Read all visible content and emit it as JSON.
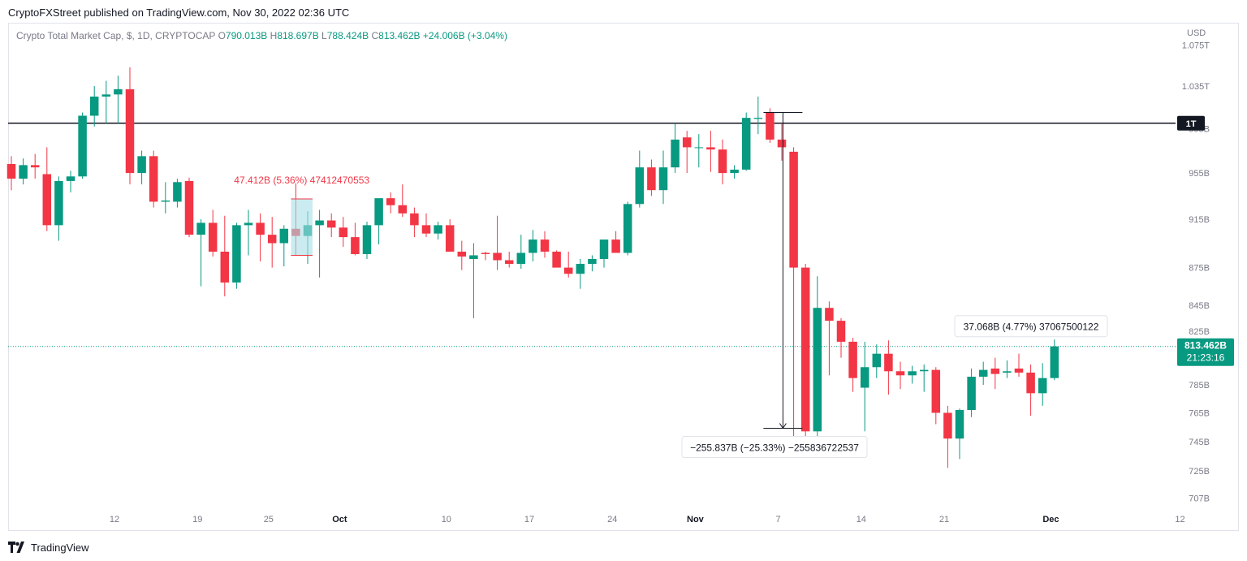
{
  "header": {
    "published": "CryptoFXStreet published on TradingView.com, Nov 30, 2022 02:36 UTC"
  },
  "legend": {
    "title": "Crypto Total Market Cap, $, 1D, CRYPTOCAP",
    "o_label": "O",
    "o_value": "790.013B",
    "h_label": "H",
    "h_value": "818.697B",
    "l_label": "L",
    "l_value": "788.424B",
    "c_label": "C",
    "c_value": "813.462B",
    "change": "+24.006B (+3.04%)"
  },
  "footer": {
    "brand": "TradingView"
  },
  "colors": {
    "up": "#089981",
    "down": "#f23645",
    "line": "#131722",
    "axis_text": "#787b86"
  },
  "chart_data": {
    "type": "candlestick",
    "currency": "USD",
    "y_scale": "log",
    "y_ticks": [
      "1.075T",
      "1.035T",
      "995B",
      "955B",
      "915B",
      "875B",
      "845B",
      "825B",
      "785B",
      "765B",
      "745B",
      "725B",
      "707B"
    ],
    "x_ticks": [
      "12",
      "19",
      "25",
      "Oct",
      "10",
      "17",
      "24",
      "Nov",
      "7",
      "14",
      "21",
      "Dec",
      "12"
    ],
    "candles": [
      {
        "o": 963,
        "h": 970,
        "l": 940,
        "c": 950
      },
      {
        "o": 950,
        "h": 968,
        "l": 945,
        "c": 962
      },
      {
        "o": 962,
        "h": 972,
        "l": 950,
        "c": 960
      },
      {
        "o": 954,
        "h": 978,
        "l": 905,
        "c": 910
      },
      {
        "o": 910,
        "h": 952,
        "l": 897,
        "c": 948
      },
      {
        "o": 948,
        "h": 957,
        "l": 938,
        "c": 952
      },
      {
        "o": 952,
        "h": 1010,
        "l": 950,
        "c": 1007
      },
      {
        "o": 1007,
        "h": 1035,
        "l": 997,
        "c": 1025
      },
      {
        "o": 1025,
        "h": 1040,
        "l": 1000,
        "c": 1027
      },
      {
        "o": 1027,
        "h": 1045,
        "l": 1000,
        "c": 1032
      },
      {
        "o": 1032,
        "h": 1053,
        "l": 945,
        "c": 955
      },
      {
        "o": 955,
        "h": 975,
        "l": 945,
        "c": 970
      },
      {
        "o": 970,
        "h": 975,
        "l": 925,
        "c": 930
      },
      {
        "o": 930,
        "h": 947,
        "l": 920,
        "c": 931
      },
      {
        "o": 930,
        "h": 950,
        "l": 925,
        "c": 947
      },
      {
        "o": 948,
        "h": 951,
        "l": 900,
        "c": 902
      },
      {
        "o": 902,
        "h": 915,
        "l": 860,
        "c": 912
      },
      {
        "o": 912,
        "h": 923,
        "l": 884,
        "c": 888
      },
      {
        "o": 888,
        "h": 918,
        "l": 852,
        "c": 863
      },
      {
        "o": 863,
        "h": 912,
        "l": 858,
        "c": 910
      },
      {
        "o": 910,
        "h": 923,
        "l": 885,
        "c": 912
      },
      {
        "o": 912,
        "h": 920,
        "l": 880,
        "c": 902
      },
      {
        "o": 902,
        "h": 917,
        "l": 875,
        "c": 895
      },
      {
        "o": 895,
        "h": 910,
        "l": 876,
        "c": 907
      },
      {
        "o": 907,
        "h": 946,
        "l": 885,
        "c": 901
      },
      {
        "o": 901,
        "h": 922,
        "l": 878,
        "c": 910
      },
      {
        "o": 910,
        "h": 923,
        "l": 867,
        "c": 914
      },
      {
        "o": 914,
        "h": 920,
        "l": 900,
        "c": 908
      },
      {
        "o": 908,
        "h": 917,
        "l": 892,
        "c": 900
      },
      {
        "o": 900,
        "h": 912,
        "l": 885,
        "c": 886
      },
      {
        "o": 886,
        "h": 913,
        "l": 882,
        "c": 910
      },
      {
        "o": 910,
        "h": 932,
        "l": 894,
        "c": 933
      },
      {
        "o": 933,
        "h": 938,
        "l": 920,
        "c": 927
      },
      {
        "o": 927,
        "h": 945,
        "l": 917,
        "c": 920
      },
      {
        "o": 920,
        "h": 925,
        "l": 900,
        "c": 910
      },
      {
        "o": 910,
        "h": 920,
        "l": 900,
        "c": 903
      },
      {
        "o": 903,
        "h": 913,
        "l": 898,
        "c": 910
      },
      {
        "o": 910,
        "h": 915,
        "l": 888,
        "c": 888
      },
      {
        "o": 888,
        "h": 897,
        "l": 873,
        "c": 884
      },
      {
        "o": 882,
        "h": 895,
        "l": 835,
        "c": 885
      },
      {
        "o": 887,
        "h": 888,
        "l": 881,
        "c": 886
      },
      {
        "o": 887,
        "h": 918,
        "l": 873,
        "c": 881
      },
      {
        "o": 881,
        "h": 888,
        "l": 875,
        "c": 878
      },
      {
        "o": 878,
        "h": 902,
        "l": 874,
        "c": 887
      },
      {
        "o": 887,
        "h": 906,
        "l": 880,
        "c": 898
      },
      {
        "o": 898,
        "h": 905,
        "l": 883,
        "c": 888
      },
      {
        "o": 888,
        "h": 889,
        "l": 876,
        "c": 875
      },
      {
        "o": 875,
        "h": 888,
        "l": 867,
        "c": 870
      },
      {
        "o": 870,
        "h": 882,
        "l": 858,
        "c": 878
      },
      {
        "o": 878,
        "h": 885,
        "l": 872,
        "c": 882
      },
      {
        "o": 882,
        "h": 895,
        "l": 875,
        "c": 898
      },
      {
        "o": 898,
        "h": 905,
        "l": 888,
        "c": 887
      },
      {
        "o": 887,
        "h": 930,
        "l": 885,
        "c": 928
      },
      {
        "o": 928,
        "h": 975,
        "l": 925,
        "c": 960
      },
      {
        "o": 960,
        "h": 967,
        "l": 935,
        "c": 940
      },
      {
        "o": 940,
        "h": 975,
        "l": 928,
        "c": 960
      },
      {
        "o": 960,
        "h": 1000,
        "l": 955,
        "c": 985
      },
      {
        "o": 987,
        "h": 993,
        "l": 955,
        "c": 978
      },
      {
        "o": 978,
        "h": 990,
        "l": 960,
        "c": 978
      },
      {
        "o": 978,
        "h": 993,
        "l": 956,
        "c": 976
      },
      {
        "o": 976,
        "h": 985,
        "l": 945,
        "c": 955
      },
      {
        "o": 955,
        "h": 962,
        "l": 950,
        "c": 958
      },
      {
        "o": 958,
        "h": 1010,
        "l": 957,
        "c": 1005
      },
      {
        "o": 1004,
        "h": 1025,
        "l": 990,
        "c": 1005
      },
      {
        "o": 1010,
        "h": 1014,
        "l": 982,
        "c": 985
      },
      {
        "o": 985,
        "h": 1000,
        "l": 966,
        "c": 978
      },
      {
        "o": 974,
        "h": 978,
        "l": 740,
        "c": 875
      },
      {
        "o": 875,
        "h": 878,
        "l": 738,
        "c": 752
      },
      {
        "o": 752,
        "h": 868,
        "l": 740,
        "c": 843
      },
      {
        "o": 843,
        "h": 848,
        "l": 792,
        "c": 833
      },
      {
        "o": 833,
        "h": 835,
        "l": 805,
        "c": 817
      },
      {
        "o": 817,
        "h": 820,
        "l": 780,
        "c": 790
      },
      {
        "o": 783,
        "h": 817,
        "l": 752,
        "c": 798
      },
      {
        "o": 798,
        "h": 815,
        "l": 790,
        "c": 808
      },
      {
        "o": 808,
        "h": 818,
        "l": 778,
        "c": 795
      },
      {
        "o": 795,
        "h": 802,
        "l": 782,
        "c": 792
      },
      {
        "o": 792,
        "h": 799,
        "l": 786,
        "c": 795
      },
      {
        "o": 795,
        "h": 800,
        "l": 780,
        "c": 796
      },
      {
        "o": 796,
        "h": 798,
        "l": 757,
        "c": 765
      },
      {
        "o": 765,
        "h": 770,
        "l": 727,
        "c": 747
      },
      {
        "o": 747,
        "h": 768,
        "l": 733,
        "c": 767
      },
      {
        "o": 767,
        "h": 797,
        "l": 762,
        "c": 791
      },
      {
        "o": 791,
        "h": 802,
        "l": 785,
        "c": 796
      },
      {
        "o": 797,
        "h": 805,
        "l": 782,
        "c": 793
      },
      {
        "o": 794,
        "h": 803,
        "l": 790,
        "c": 795
      },
      {
        "o": 797,
        "h": 808,
        "l": 791,
        "c": 794
      },
      {
        "o": 794,
        "h": 800,
        "l": 763,
        "c": 779
      },
      {
        "o": 779,
        "h": 801,
        "l": 770,
        "c": 790
      },
      {
        "o": 790,
        "h": 818.697,
        "l": 788.424,
        "c": 813.462
      }
    ],
    "horizontal_line": {
      "value": 1000,
      "label": "1T"
    },
    "last_price": {
      "value": 813.462,
      "label": "813.462B",
      "countdown": "21:23:16"
    },
    "measurements": [
      {
        "label": "47.412B (5.36%) 47412470553",
        "color": "#f23645",
        "from_candle": 24,
        "to_candle": 25,
        "from_price": 885,
        "to_price": 932.412
      },
      {
        "label": "−255.837B (−25.33%) −255836722537",
        "color": "#131722",
        "from_candle": 64,
        "to_candle": 66,
        "from_price": 1010,
        "to_price": 754.163
      },
      {
        "label": "37.068B (4.77%) 37067500122",
        "color": "#131722",
        "from_candle": 88,
        "to_candle": 88,
        "from_price": 776.394,
        "to_price": 813.462
      }
    ]
  }
}
